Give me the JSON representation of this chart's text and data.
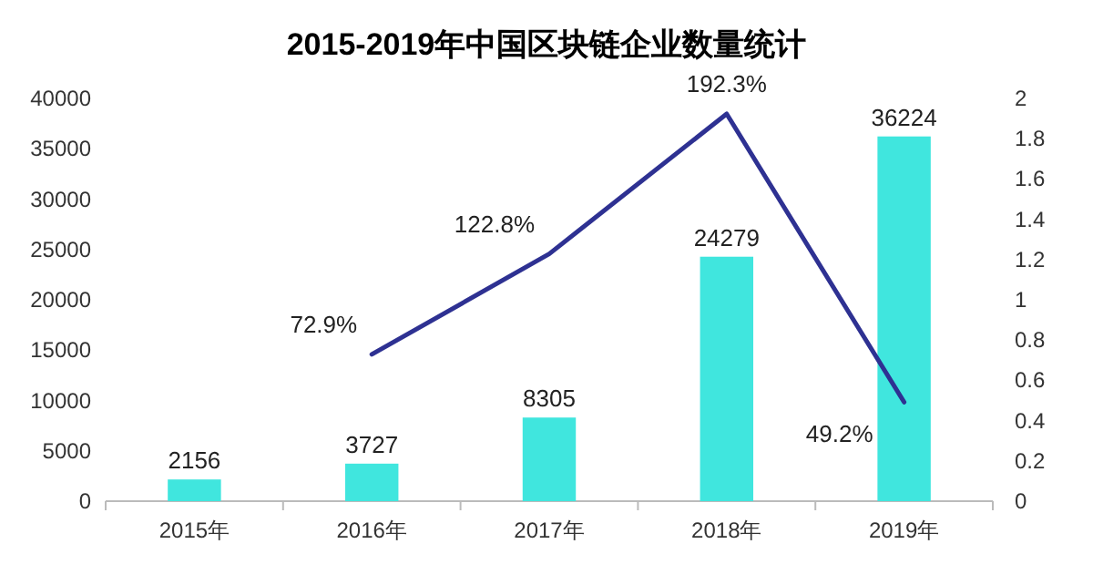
{
  "chart_data": {
    "type": "bar",
    "title": "2015-2019年中国区块链企业数量统计",
    "categories": [
      "2015年",
      "2016年",
      "2017年",
      "2018年",
      "2019年"
    ],
    "series": [
      {
        "color": "#40e6de",
        "values": [
          2156,
          3727,
          8305,
          24279,
          36224
        ],
        "value_labels": [
          "2156",
          "3727",
          "8305",
          "24279",
          "36224"
        ]
      },
      {
        "type": "line",
        "axis": "y2",
        "color": "#2e3192",
        "values": [
          null,
          0.729,
          1.228,
          1.923,
          0.492
        ],
        "value_labels": [
          null,
          "72.9%",
          "122.8%",
          "192.3%",
          "49.2%"
        ]
      }
    ],
    "ylim": [
      0,
      40000
    ],
    "yticks": [
      0,
      5000,
      10000,
      15000,
      20000,
      25000,
      30000,
      35000,
      40000
    ],
    "y2lim": [
      0,
      2
    ],
    "y2ticks": [
      0,
      0.2,
      0.4,
      0.6,
      0.8,
      1,
      1.2,
      1.4,
      1.6,
      1.8,
      2
    ],
    "grid": false
  }
}
